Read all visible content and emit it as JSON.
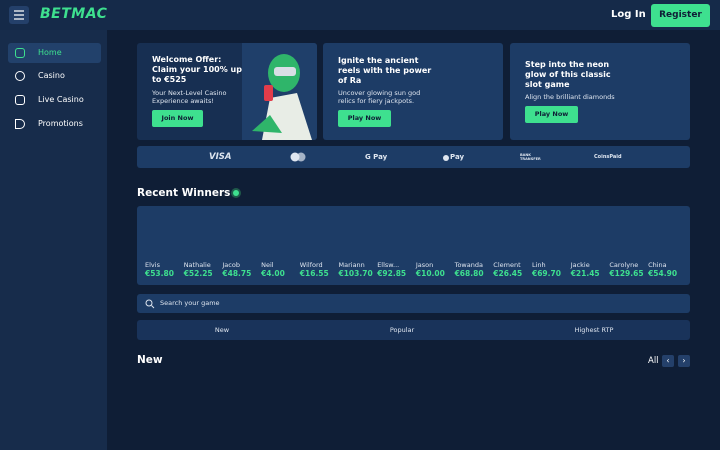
{
  "header": {
    "logo": "BETMAC",
    "login": "Log In",
    "register": "Register"
  },
  "sidebar": {
    "items": [
      "Home",
      "Casino",
      "Live Casino",
      "Promotions"
    ]
  },
  "promos": [
    {
      "title": "Welcome Offer: Claim your 100% up to €525",
      "text": "Your Next-Level Casino Experience awaits!",
      "button": "Join Now"
    },
    {
      "title": "Ignite the ancient reels with the power of Ra",
      "text": "Uncover glowing sun god relics for fiery jackpots.",
      "button": "Play Now"
    },
    {
      "title": "Step into the neon glow of this classic slot game",
      "text": "Align the brilliant diamonds",
      "button": "Play Now"
    }
  ],
  "payments": [
    "VISA",
    "G Pay",
    "Pay",
    "BANK TRANSFER",
    "CoinsPaid"
  ],
  "winners": {
    "title": "Recent Winners",
    "items": [
      {
        "name": "Elvis",
        "amount": "€53.80"
      },
      {
        "name": "Nathalie",
        "amount": "€52.25"
      },
      {
        "name": "Jacob",
        "amount": "€48.75"
      },
      {
        "name": "Neil",
        "amount": "€4.00"
      },
      {
        "name": "Wilford",
        "amount": "€16.55"
      },
      {
        "name": "Mariann",
        "amount": "€103.70"
      },
      {
        "name": "Ellsw...",
        "amount": "€92.85"
      },
      {
        "name": "Jason",
        "amount": "€10.00"
      },
      {
        "name": "Towanda",
        "amount": "€68.80"
      },
      {
        "name": "Clement",
        "amount": "€26.45"
      },
      {
        "name": "Linh",
        "amount": "€69.70"
      },
      {
        "name": "Jackie",
        "amount": "€21.45"
      },
      {
        "name": "Carolyne",
        "amount": "€129.65"
      },
      {
        "name": "China",
        "amount": "€54.90"
      }
    ]
  },
  "search": {
    "placeholder": "Search your game"
  },
  "tabs": [
    "New",
    "Popular",
    "Highest RTP"
  ],
  "section": {
    "title": "New",
    "all": "All"
  }
}
